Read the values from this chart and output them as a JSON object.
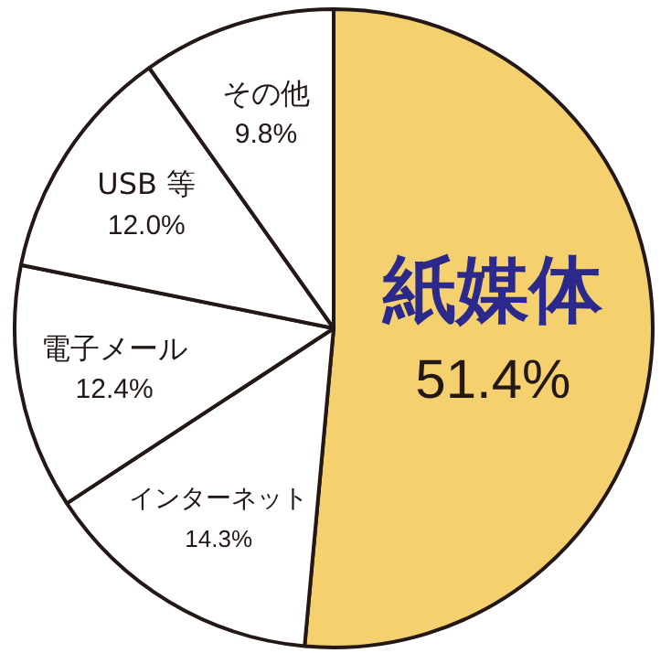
{
  "chart_data": {
    "type": "pie",
    "categories": [
      "紙媒体",
      "インターネット",
      "電子メール",
      "USB 等",
      "その他"
    ],
    "values": [
      51.4,
      14.3,
      12.4,
      12.0,
      9.8
    ],
    "colors": [
      "#f5d06f",
      "#ffffff",
      "#ffffff",
      "#ffffff",
      "#ffffff"
    ],
    "value_labels": [
      "51.4%",
      "14.3%",
      "12.4%",
      "12.0%",
      "9.8%"
    ],
    "legend": false
  }
}
